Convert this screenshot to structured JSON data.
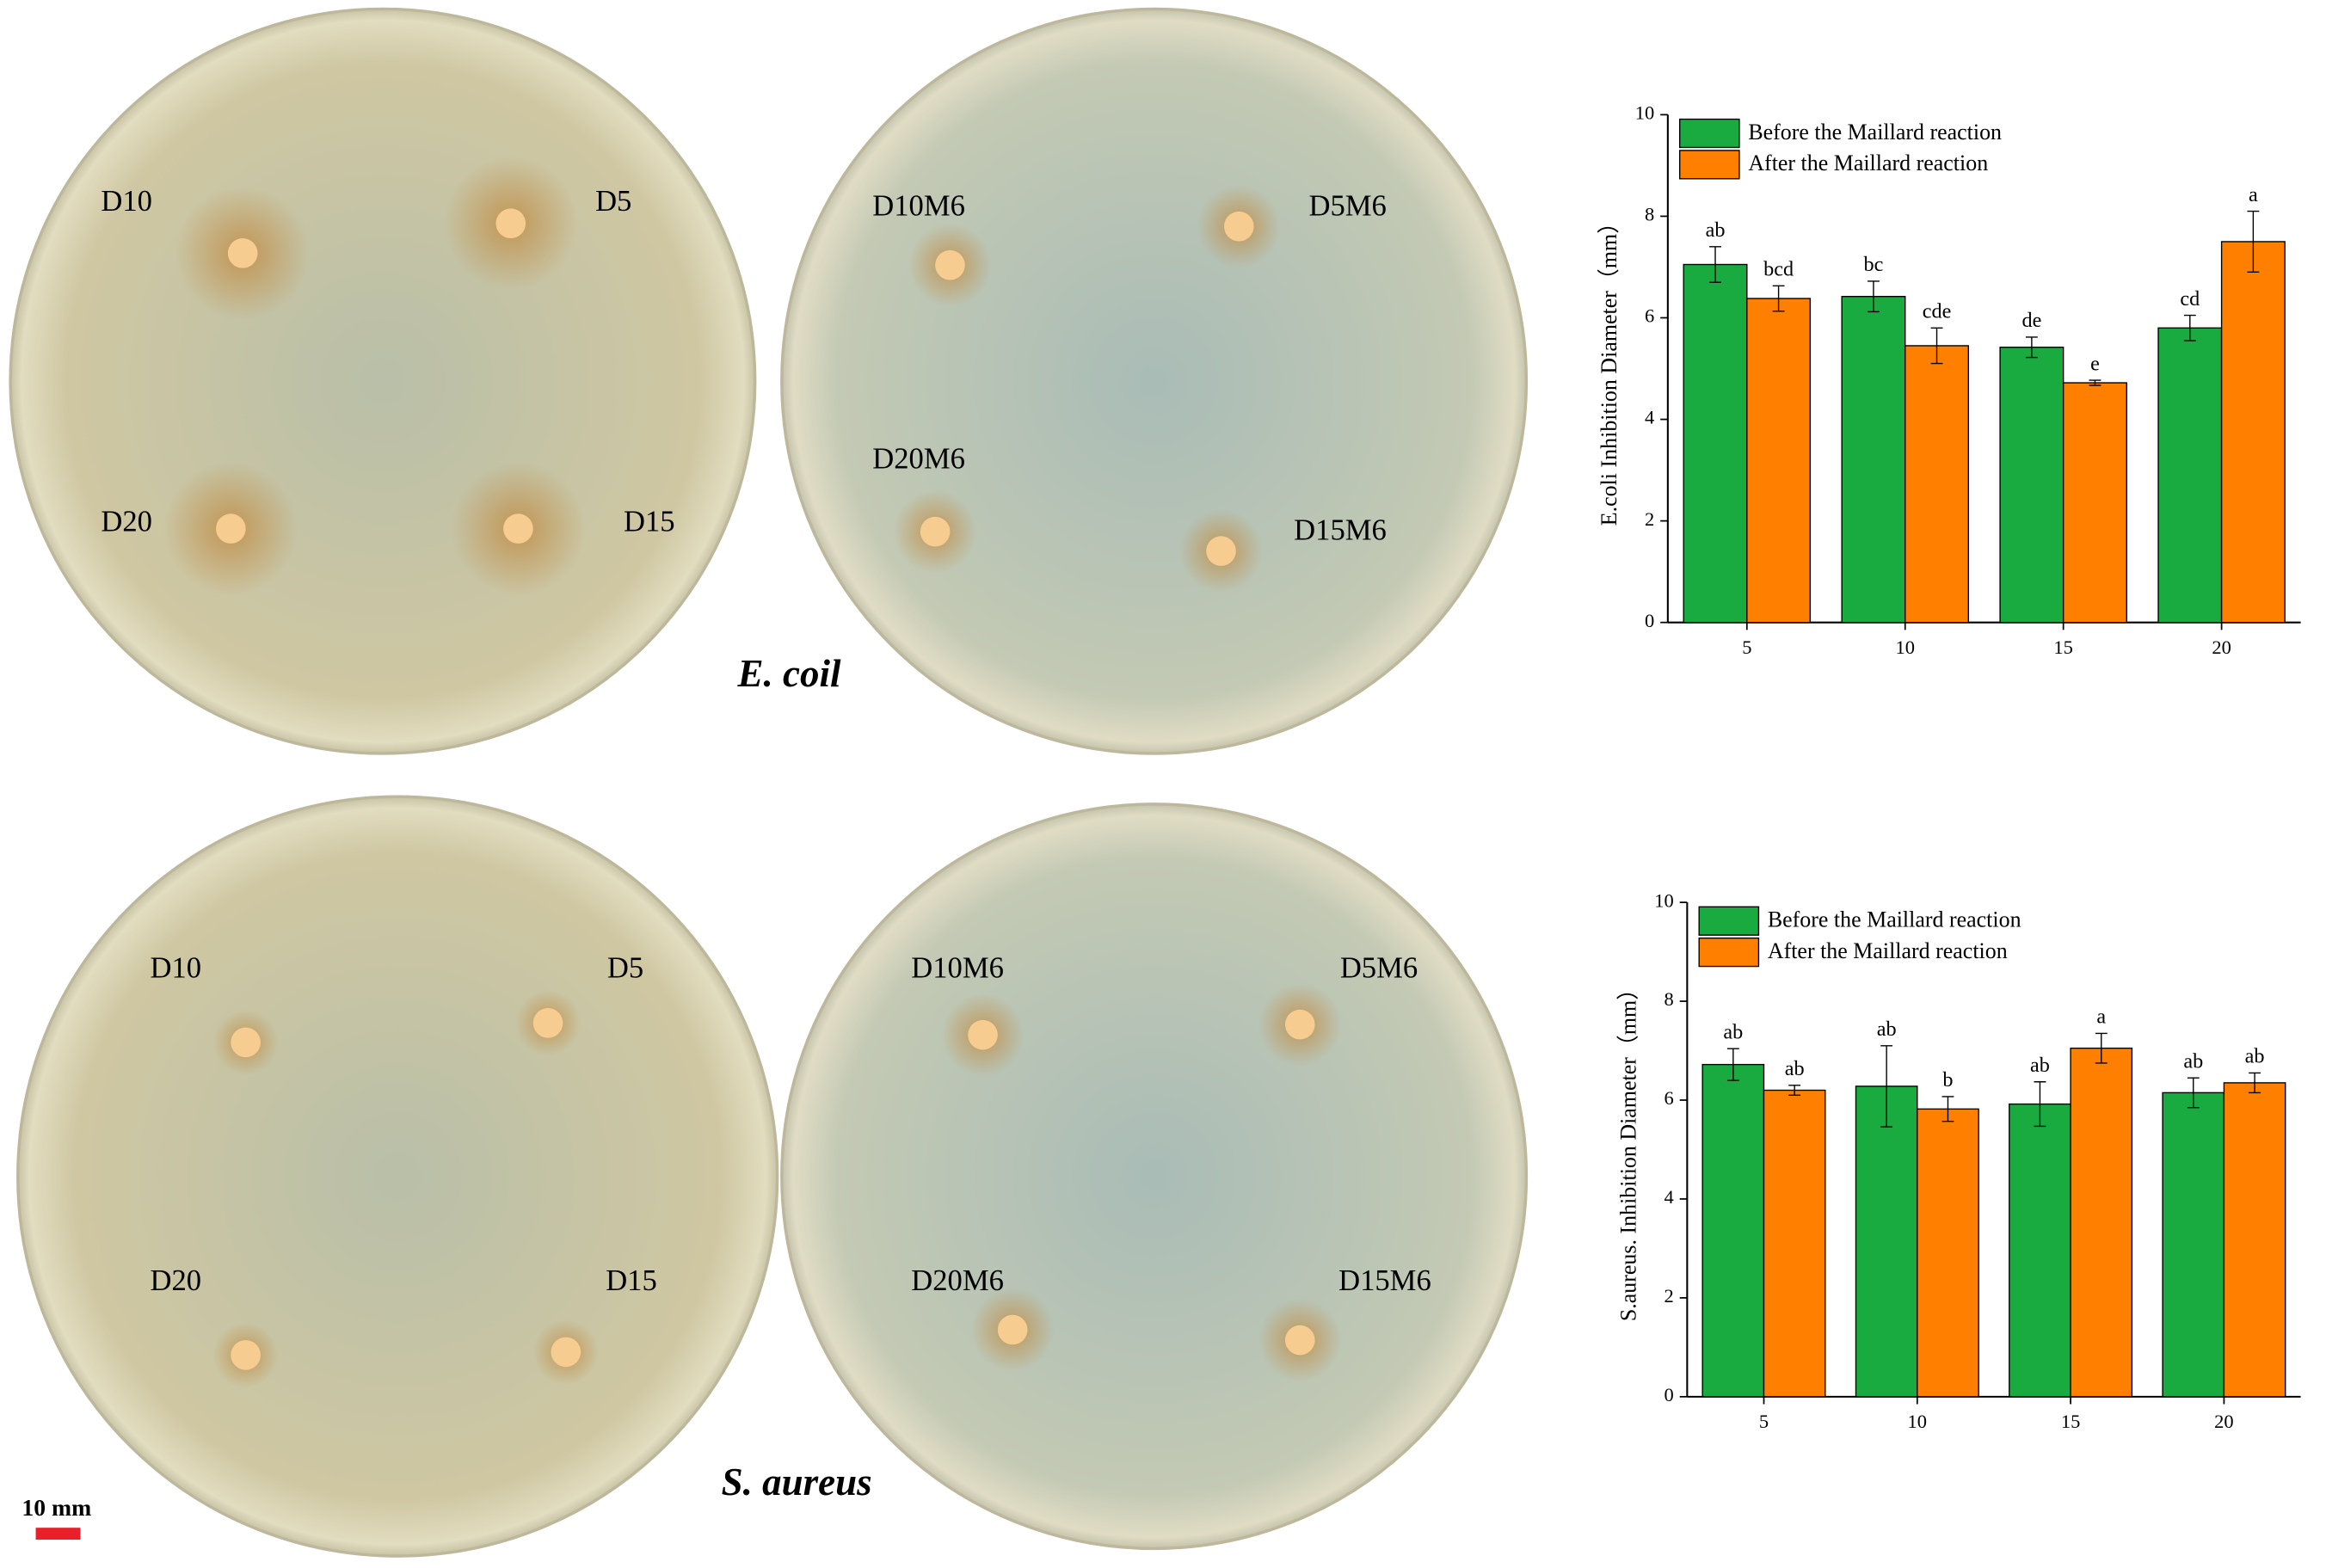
{
  "plates": [
    [
      "D10",
      "D5",
      "D20",
      "D15"
    ],
    [
      "D10M6",
      "D5M6",
      "D20M6",
      "D15M6"
    ],
    [
      "D10",
      "D5",
      "D20",
      "D15"
    ],
    [
      "D10M6",
      "D5M6",
      "D20M6",
      "D15M6"
    ]
  ],
  "captions": [
    "E. coil",
    "S. aureus"
  ],
  "scale_bar": "10 mm",
  "chart_data": [
    {
      "type": "bar",
      "ylabel": "E.coli Inhibition Diameter（mm）",
      "categories": [
        "5",
        "10",
        "15",
        "20"
      ],
      "ylim": [
        0,
        10
      ],
      "yticks": [
        0,
        2,
        4,
        6,
        8,
        10
      ],
      "legend": "upper left",
      "series": [
        {
          "name": "Before the Maillard reaction",
          "color": "#1aab40",
          "values": [
            7.05,
            6.42,
            5.42,
            5.8
          ],
          "errors": [
            0.35,
            0.3,
            0.2,
            0.25
          ],
          "letters": [
            "ab",
            "bc",
            "de",
            "cd"
          ]
        },
        {
          "name": "After the Maillard reaction",
          "color": "#ff8000",
          "values": [
            6.38,
            5.45,
            4.72,
            7.5
          ],
          "errors": [
            0.25,
            0.35,
            0.05,
            0.6
          ],
          "letters": [
            "bcd",
            "cde",
            "e",
            "a"
          ]
        }
      ]
    },
    {
      "type": "bar",
      "ylabel": "S.aureus. Inhibition Diameter（mm）",
      "categories": [
        "5",
        "10",
        "15",
        "20"
      ],
      "ylim": [
        0,
        10
      ],
      "yticks": [
        0,
        2,
        4,
        6,
        8,
        10
      ],
      "legend": "upper left",
      "series": [
        {
          "name": "Before the Maillard reaction",
          "color": "#1aab40",
          "values": [
            6.72,
            6.28,
            5.92,
            6.15
          ],
          "errors": [
            0.32,
            0.82,
            0.45,
            0.3
          ],
          "letters": [
            "ab",
            "ab",
            "ab",
            "ab"
          ]
        },
        {
          "name": "After the Maillard reaction",
          "color": "#ff8000",
          "values": [
            6.2,
            5.82,
            7.05,
            6.35
          ],
          "errors": [
            0.1,
            0.25,
            0.3,
            0.2
          ],
          "letters": [
            "ab",
            "b",
            "a",
            "ab"
          ]
        }
      ]
    }
  ]
}
